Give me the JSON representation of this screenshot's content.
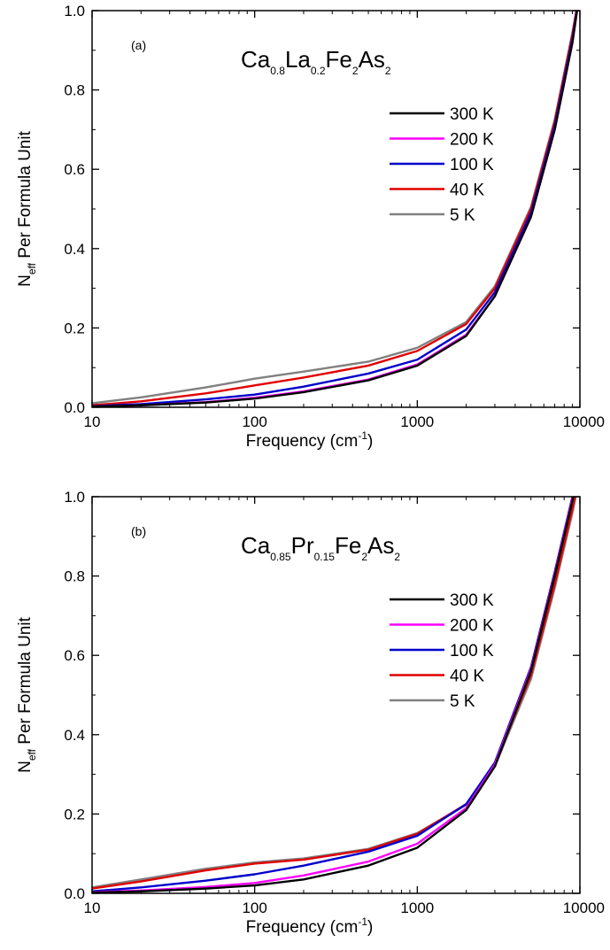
{
  "chart_data": [
    {
      "type": "line",
      "panel_label": "(a)",
      "title_parts": [
        {
          "text": "Ca",
          "sub": "0.8"
        },
        {
          "text": "La",
          "sub": "0.2"
        },
        {
          "text": "Fe",
          "sub": "2"
        },
        {
          "text": "As",
          "sub": "2"
        }
      ],
      "xlabel_main": "Frequency (cm",
      "xlabel_sup": "-1",
      "xlabel_end": ")",
      "ylabel_main": "N",
      "ylabel_sub": "eff",
      "ylabel_rest": " Per Formula Unit",
      "xscale": "log",
      "xlim": [
        10,
        10000
      ],
      "ylim": [
        0.0,
        1.0
      ],
      "xticks": [
        {
          "v": 10,
          "label": "10"
        },
        {
          "v": 100,
          "label": "100"
        },
        {
          "v": 1000,
          "label": "1000"
        },
        {
          "v": 10000,
          "label": "10000"
        }
      ],
      "yticks": [
        {
          "v": 0.0,
          "label": "0.0"
        },
        {
          "v": 0.2,
          "label": "0.2"
        },
        {
          "v": 0.4,
          "label": "0.4"
        },
        {
          "v": 0.6,
          "label": "0.6"
        },
        {
          "v": 0.8,
          "label": "0.8"
        },
        {
          "v": 1.0,
          "label": "1.0"
        }
      ],
      "legend_position": "right",
      "x": [
        10,
        20,
        50,
        100,
        200,
        500,
        1000,
        2000,
        3000,
        5000,
        7000,
        9000,
        10000
      ],
      "series": [
        {
          "name": "300 K",
          "color": "#000000",
          "values": [
            0.002,
            0.005,
            0.012,
            0.022,
            0.038,
            0.068,
            0.105,
            0.18,
            0.28,
            0.48,
            0.7,
            0.92,
            1.05
          ]
        },
        {
          "name": "200 K",
          "color": "#ff00ff",
          "values": [
            0.002,
            0.005,
            0.013,
            0.024,
            0.04,
            0.07,
            0.108,
            0.183,
            0.28,
            0.48,
            0.7,
            0.92,
            1.05
          ]
        },
        {
          "name": "100 K",
          "color": "#0000cc",
          "values": [
            0.003,
            0.008,
            0.02,
            0.032,
            0.052,
            0.085,
            0.12,
            0.196,
            0.29,
            0.49,
            0.71,
            0.93,
            1.05
          ]
        },
        {
          "name": "40 K",
          "color": "#e00000",
          "values": [
            0.005,
            0.015,
            0.035,
            0.055,
            0.075,
            0.105,
            0.142,
            0.21,
            0.3,
            0.5,
            0.72,
            0.94,
            1.05
          ]
        },
        {
          "name": "5 K",
          "color": "#808080",
          "values": [
            0.01,
            0.025,
            0.05,
            0.072,
            0.09,
            0.115,
            0.15,
            0.215,
            0.305,
            0.505,
            0.725,
            0.945,
            1.05
          ]
        }
      ]
    },
    {
      "type": "line",
      "panel_label": "(b)",
      "title_parts": [
        {
          "text": "Ca",
          "sub": "0.85"
        },
        {
          "text": "Pr",
          "sub": "0.15"
        },
        {
          "text": "Fe",
          "sub": "2"
        },
        {
          "text": "As",
          "sub": "2"
        }
      ],
      "xlabel_main": "Frequency (cm",
      "xlabel_sup": "-1",
      "xlabel_end": ")",
      "ylabel_main": "N",
      "ylabel_sub": "eff",
      "ylabel_rest": " Per Formula Unit",
      "xscale": "log",
      "xlim": [
        10,
        10000
      ],
      "ylim": [
        0.0,
        1.0
      ],
      "xticks": [
        {
          "v": 10,
          "label": "10"
        },
        {
          "v": 100,
          "label": "100"
        },
        {
          "v": 1000,
          "label": "1000"
        },
        {
          "v": 10000,
          "label": "10000"
        }
      ],
      "yticks": [
        {
          "v": 0.0,
          "label": "0.0"
        },
        {
          "v": 0.2,
          "label": "0.2"
        },
        {
          "v": 0.4,
          "label": "0.4"
        },
        {
          "v": 0.6,
          "label": "0.6"
        },
        {
          "v": 0.8,
          "label": "0.8"
        },
        {
          "v": 1.0,
          "label": "1.0"
        }
      ],
      "legend_position": "right",
      "x": [
        10,
        20,
        50,
        100,
        200,
        500,
        1000,
        2000,
        3000,
        5000,
        7000,
        9000,
        10000
      ],
      "series": [
        {
          "name": "300 K",
          "color": "#000000",
          "values": [
            0.002,
            0.005,
            0.012,
            0.02,
            0.035,
            0.07,
            0.115,
            0.21,
            0.32,
            0.56,
            0.8,
            0.99,
            1.08
          ]
        },
        {
          "name": "200 K",
          "color": "#ff00ff",
          "values": [
            0.003,
            0.007,
            0.016,
            0.026,
            0.045,
            0.08,
            0.125,
            0.215,
            0.325,
            0.565,
            0.805,
            0.995,
            1.08
          ]
        },
        {
          "name": "100 K",
          "color": "#0000cc",
          "values": [
            0.005,
            0.015,
            0.032,
            0.048,
            0.07,
            0.105,
            0.145,
            0.225,
            0.33,
            0.57,
            0.81,
            1.0,
            1.08
          ]
        },
        {
          "name": "40 K",
          "color": "#e00000",
          "values": [
            0.012,
            0.03,
            0.058,
            0.075,
            0.085,
            0.11,
            0.15,
            0.225,
            0.325,
            0.55,
            0.78,
            0.97,
            1.06
          ]
        },
        {
          "name": "5 K",
          "color": "#808080",
          "values": [
            0.015,
            0.035,
            0.062,
            0.078,
            0.088,
            0.112,
            0.152,
            0.223,
            0.32,
            0.54,
            0.77,
            0.96,
            1.05
          ]
        }
      ]
    }
  ]
}
